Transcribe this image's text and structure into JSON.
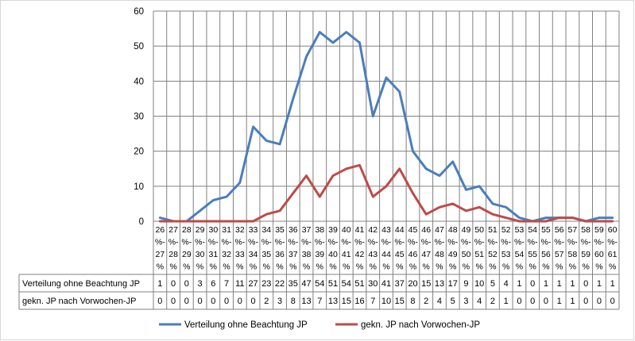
{
  "chart_data": {
    "type": "line",
    "categories": [
      [
        "26",
        "%-",
        "27",
        "%"
      ],
      [
        "27",
        "%-",
        "28",
        "%"
      ],
      [
        "28",
        "%-",
        "29",
        "%"
      ],
      [
        "29",
        "%-",
        "30",
        "%"
      ],
      [
        "30",
        "%-",
        "31",
        "%"
      ],
      [
        "31",
        "%-",
        "32",
        "%"
      ],
      [
        "32",
        "%-",
        "33",
        "%"
      ],
      [
        "33",
        "%-",
        "34",
        "%"
      ],
      [
        "34",
        "%-",
        "35",
        "%"
      ],
      [
        "35",
        "%-",
        "36",
        "%"
      ],
      [
        "36",
        "%-",
        "37",
        "%"
      ],
      [
        "37",
        "%-",
        "38",
        "%"
      ],
      [
        "38",
        "%-",
        "39",
        "%"
      ],
      [
        "39",
        "%-",
        "40",
        "%"
      ],
      [
        "40",
        "%-",
        "41",
        "%"
      ],
      [
        "41",
        "%-",
        "42",
        "%"
      ],
      [
        "42",
        "%-",
        "43",
        "%"
      ],
      [
        "43",
        "%-",
        "44",
        "%"
      ],
      [
        "44",
        "%-",
        "45",
        "%"
      ],
      [
        "45",
        "%-",
        "46",
        "%"
      ],
      [
        "46",
        "%-",
        "47",
        "%"
      ],
      [
        "47",
        "%-",
        "48",
        "%"
      ],
      [
        "48",
        "%-",
        "49",
        "%"
      ],
      [
        "49",
        "%-",
        "50",
        "%"
      ],
      [
        "50",
        "%-",
        "51",
        "%"
      ],
      [
        "51",
        "%-",
        "52",
        "%"
      ],
      [
        "52",
        "%-",
        "53",
        "%"
      ],
      [
        "53",
        "%-",
        "54",
        "%"
      ],
      [
        "54",
        "%-",
        "55",
        "%"
      ],
      [
        "55",
        "%-",
        "56",
        "%"
      ],
      [
        "56",
        "%-",
        "57",
        "%"
      ],
      [
        "57",
        "%-",
        "58",
        "%"
      ],
      [
        "58",
        "%-",
        "59",
        "%"
      ],
      [
        "59",
        "%-",
        "60",
        "%"
      ],
      [
        "60",
        "%-",
        "61",
        "%"
      ]
    ],
    "series": [
      {
        "name": "Verteilung ohne Beachtung JP",
        "color": "#4A7EBB",
        "values": [
          1,
          0,
          0,
          3,
          6,
          7,
          11,
          27,
          23,
          22,
          35,
          47,
          54,
          51,
          54,
          51,
          30,
          41,
          37,
          20,
          15,
          13,
          17,
          9,
          10,
          5,
          4,
          1,
          0,
          1,
          1,
          1,
          0,
          1,
          1
        ]
      },
      {
        "name": "gekn. JP nach Vorwochen-JP",
        "color": "#BE4B48",
        "values": [
          0,
          0,
          0,
          0,
          0,
          0,
          0,
          0,
          2,
          3,
          8,
          13,
          7,
          13,
          15,
          16,
          7,
          10,
          15,
          8,
          2,
          4,
          5,
          3,
          4,
          2,
          1,
          0,
          0,
          0,
          1,
          1,
          0,
          0,
          0
        ]
      }
    ],
    "y_ticks": [
      "0",
      "10",
      "20",
      "30",
      "40",
      "50",
      "60"
    ],
    "ylim": [
      0,
      60
    ],
    "grid": true,
    "legend_position": "bottom",
    "data_table": true
  }
}
